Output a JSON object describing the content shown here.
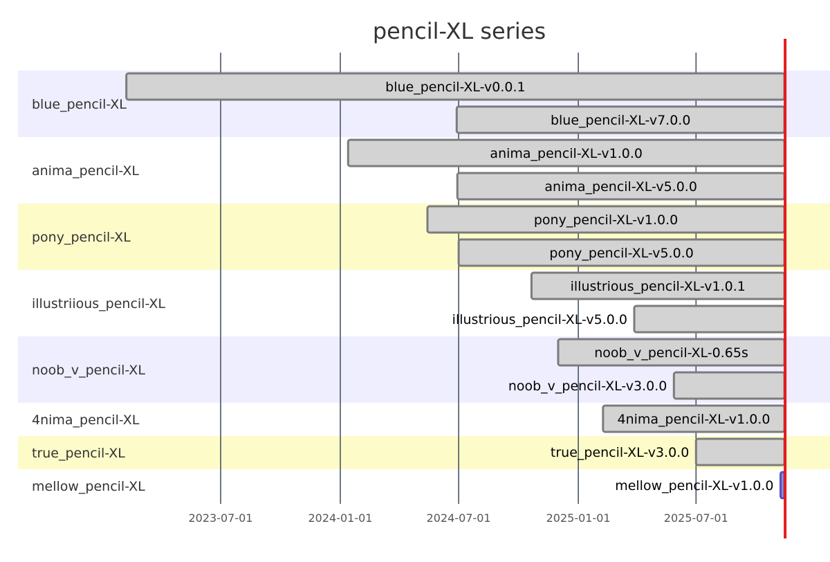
{
  "chart_data": {
    "type": "gantt",
    "title": "pencil-XL series",
    "x_ticks": [
      "2023-07-01",
      "2024-01-01",
      "2024-07-01",
      "2025-01-01",
      "2025-07-01"
    ],
    "x_domain": [
      "2023-03-15",
      "2025-11-15"
    ],
    "today_marker": "2025-11-15",
    "sections": [
      {
        "name": "blue_pencil-XL",
        "color": "#eeeeff",
        "tasks": [
          {
            "name": "blue_pencil-XL-v0.0.1",
            "start": "2023-02-06",
            "label_inside": true
          },
          {
            "name": "blue_pencil-XL-v7.0.0",
            "start": "2024-06-28",
            "label_inside": true
          }
        ]
      },
      {
        "name": "anima_pencil-XL",
        "color": "#ffffff",
        "tasks": [
          {
            "name": "anima_pencil-XL-v1.0.0",
            "start": "2024-01-13",
            "label_inside": true
          },
          {
            "name": "anima_pencil-XL-v5.0.0",
            "start": "2024-06-29",
            "label_inside": true
          }
        ]
      },
      {
        "name": "pony_pencil-XL",
        "color": "#fdfcc9",
        "tasks": [
          {
            "name": "pony_pencil-XL-v1.0.0",
            "start": "2024-05-14",
            "label_inside": true
          },
          {
            "name": "pony_pencil-XL-v5.0.0",
            "start": "2024-07-01",
            "label_inside": true
          }
        ]
      },
      {
        "name": "illustriious_pencil-XL",
        "color": "#ffffff",
        "tasks": [
          {
            "name": "illustrious_pencil-XL-v1.0.1",
            "start": "2024-10-21",
            "label_inside": true
          },
          {
            "name": "illustrious_pencil-XL-v5.0.0",
            "start": "2025-03-28",
            "label_inside": false
          }
        ]
      },
      {
        "name": "noob_v_pencil-XL",
        "color": "#eeeeff",
        "tasks": [
          {
            "name": "noob_v_pencil-XL-0.65s",
            "start": "2024-12-01",
            "label_inside": true
          },
          {
            "name": "noob_v_pencil-XL-v3.0.0",
            "start": "2025-05-28",
            "label_inside": false
          }
        ]
      },
      {
        "name": "4nima_pencil-XL",
        "color": "#ffffff",
        "tasks": [
          {
            "name": "4nima_pencil-XL-v1.0.0",
            "start": "2025-02-08",
            "label_inside": true
          }
        ]
      },
      {
        "name": "true_pencil-XL",
        "color": "#fdfcc9",
        "tasks": [
          {
            "name": "true_pencil-XL-v3.0.0",
            "start": "2025-07-01",
            "label_inside": false
          }
        ]
      },
      {
        "name": "mellow_pencil-XL",
        "color": "#ffffff",
        "tasks": [
          {
            "name": "mellow_pencil-XL-v1.0.0",
            "start": "2025-11-08",
            "label_inside": false,
            "active": true
          }
        ]
      }
    ],
    "colors": {
      "bar_fill": "#d3d3d3",
      "bar_stroke": "#7b7b7b",
      "active_fill": "#8a90dd",
      "active_stroke": "#534fbc",
      "grid": "#3b4a5a",
      "today": "#e41a1c"
    }
  }
}
